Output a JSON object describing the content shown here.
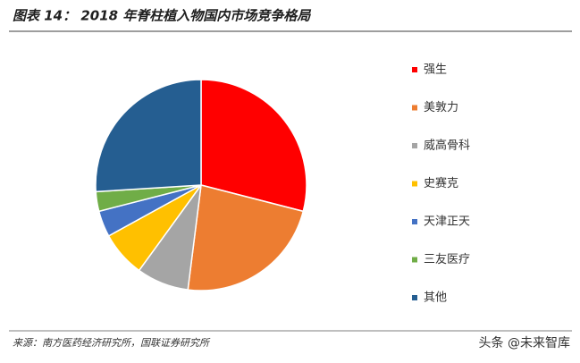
{
  "chart_data": {
    "type": "pie",
    "title": "图表 14：  2018 年脊柱植入物国内市场竞争格局",
    "categories": [
      "强生",
      "美敦力",
      "威高骨科",
      "史赛克",
      "天津正天",
      "三友医疗",
      "其他"
    ],
    "values": [
      29,
      23,
      8,
      7,
      4,
      3,
      26
    ],
    "colors": [
      "#ff0000",
      "#ed7d31",
      "#a5a5a5",
      "#ffc000",
      "#4472c4",
      "#70ad47",
      "#255e91"
    ],
    "source": "来源：南方医药经济研究所，国联证券研究所",
    "watermark": "头条 @未来智库"
  }
}
